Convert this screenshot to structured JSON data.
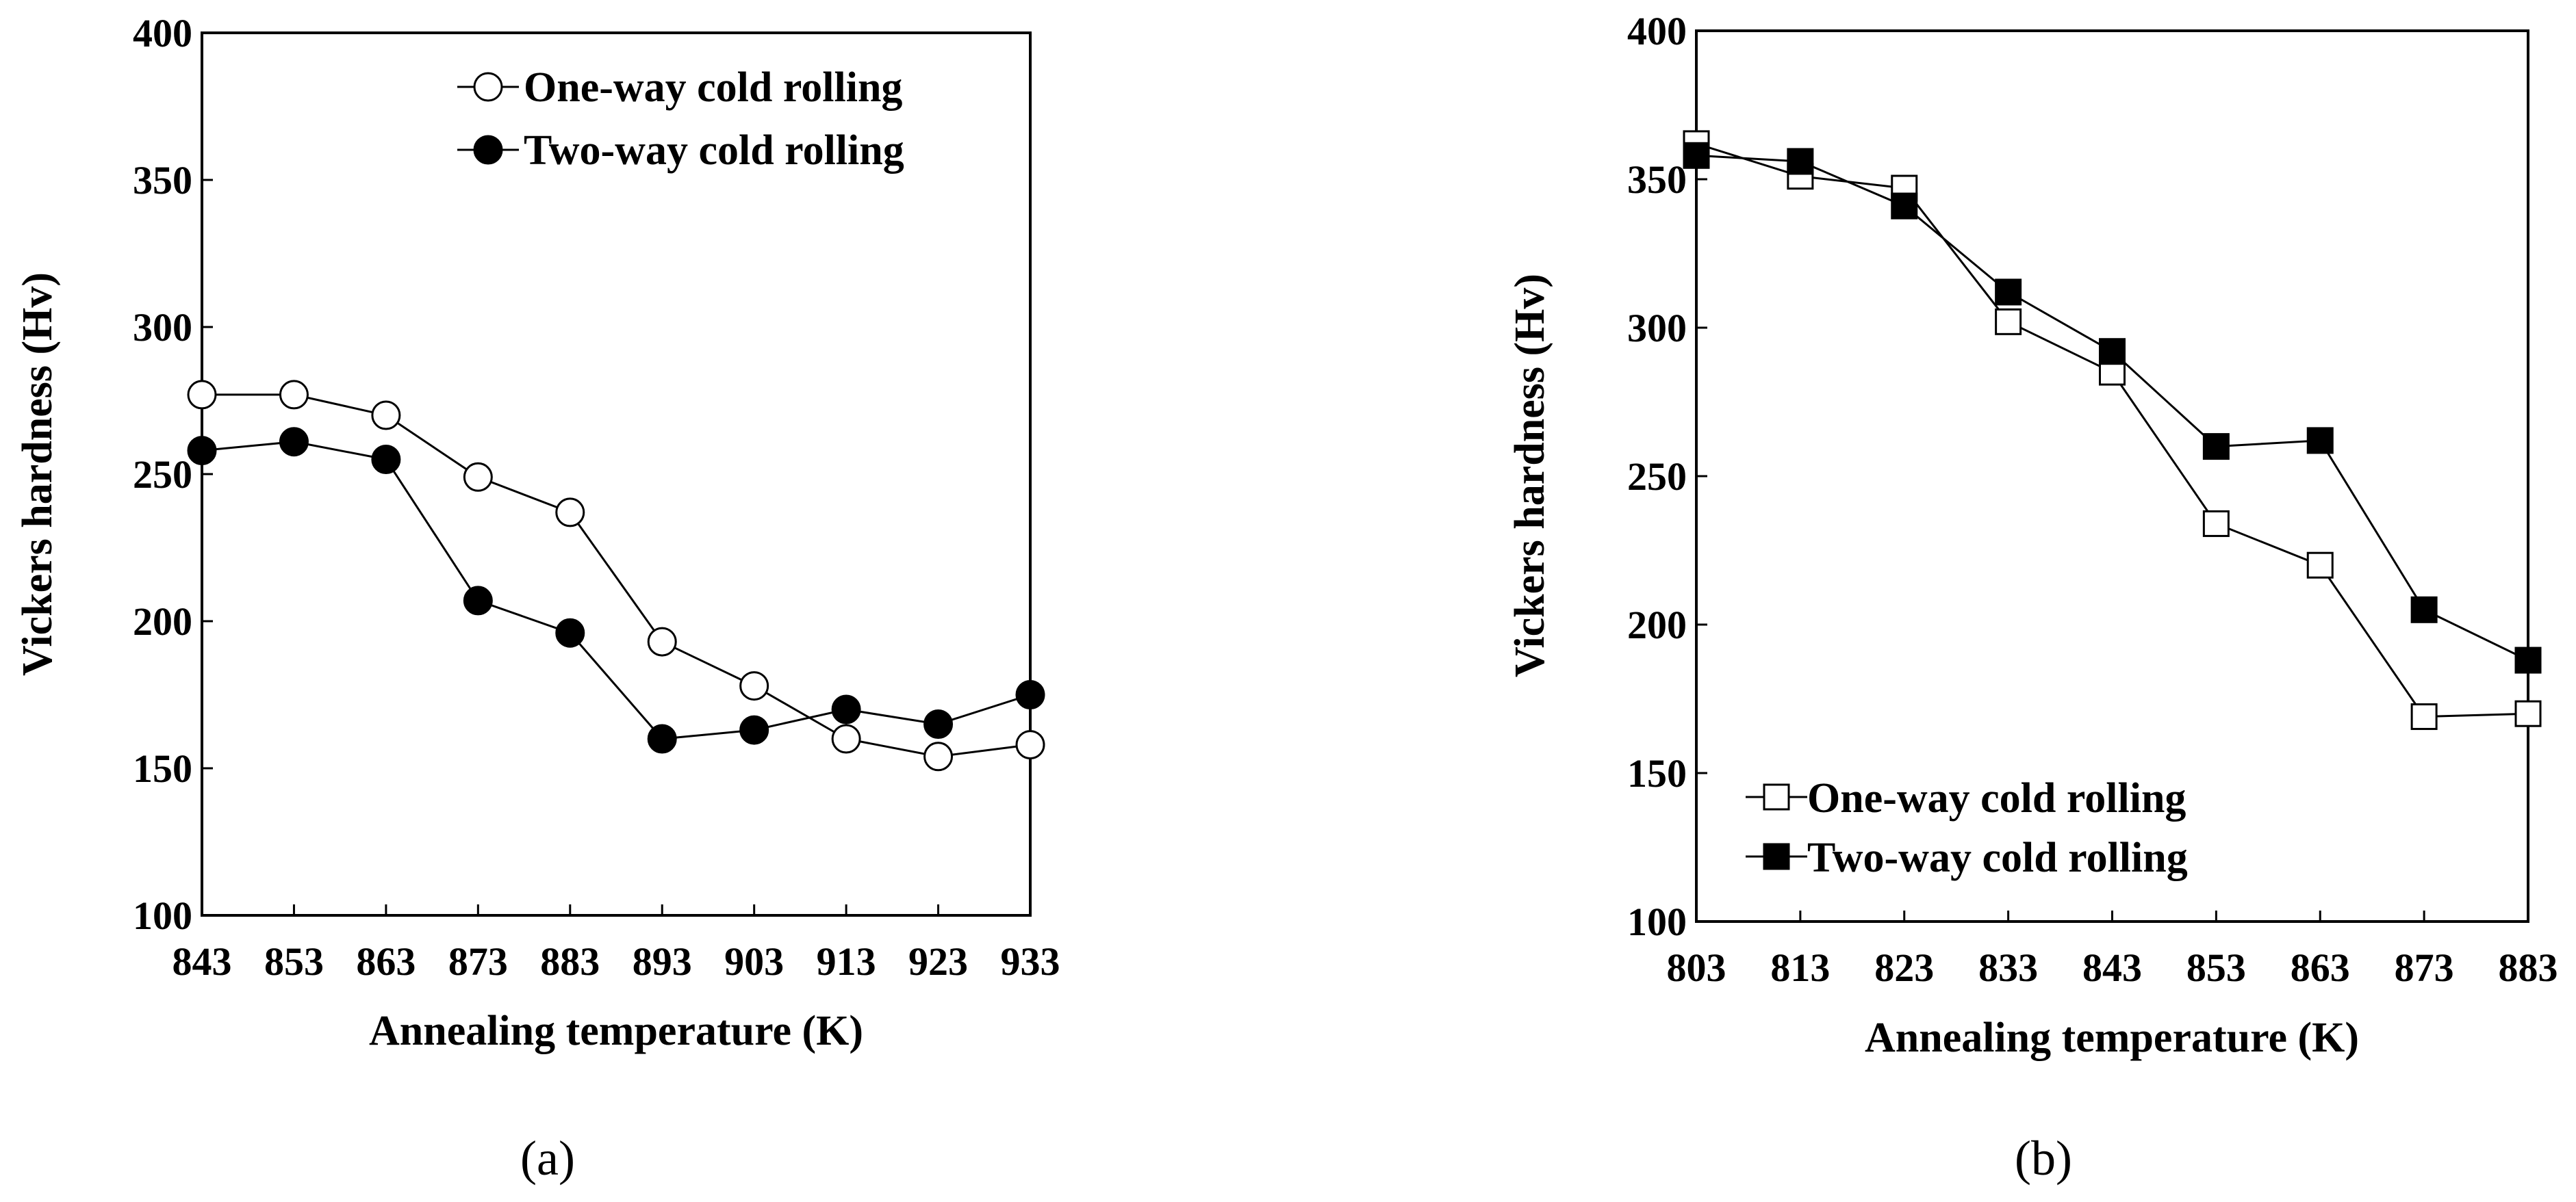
{
  "chart_data": [
    {
      "type": "line",
      "panel_label": "(a)",
      "xlabel": "Annealing temperature (K)",
      "ylabel": "Vickers hardness (Hv)",
      "x": [
        843,
        853,
        863,
        873,
        883,
        893,
        903,
        913,
        923,
        933
      ],
      "xticks": [
        "843",
        "853",
        "863",
        "873",
        "883",
        "893",
        "903",
        "913",
        "923",
        "933"
      ],
      "ylim": [
        100,
        400
      ],
      "yticks": [
        "100",
        "150",
        "200",
        "250",
        "300",
        "350",
        "400"
      ],
      "legend_position": "top-right",
      "series": [
        {
          "name": "One-way cold rolling",
          "marker": "open-circle",
          "values": [
            277,
            277,
            270,
            249,
            237,
            193,
            178,
            160,
            154,
            158
          ]
        },
        {
          "name": "Two-way cold rolling",
          "marker": "filled-circle",
          "values": [
            258,
            261,
            255,
            207,
            196,
            160,
            163,
            170,
            165,
            175
          ]
        }
      ]
    },
    {
      "type": "line",
      "panel_label": "(b)",
      "xlabel": "Annealing temperature (K)",
      "ylabel": "Vickers hardness (Hv)",
      "x": [
        803,
        813,
        823,
        833,
        843,
        853,
        863,
        873,
        883
      ],
      "xticks": [
        "803",
        "813",
        "823",
        "833",
        "843",
        "853",
        "863",
        "873",
        "883"
      ],
      "ylim": [
        100,
        400
      ],
      "yticks": [
        "100",
        "150",
        "200",
        "250",
        "300",
        "350",
        "400"
      ],
      "legend_position": "bottom-left",
      "series": [
        {
          "name": "One-way cold rolling",
          "marker": "open-square",
          "values": [
            362,
            351,
            347,
            302,
            285,
            234,
            220,
            169,
            170
          ]
        },
        {
          "name": "Two-way cold rolling",
          "marker": "filled-square",
          "values": [
            358,
            356,
            341,
            312,
            292,
            260,
            262,
            205,
            188
          ]
        }
      ]
    }
  ]
}
